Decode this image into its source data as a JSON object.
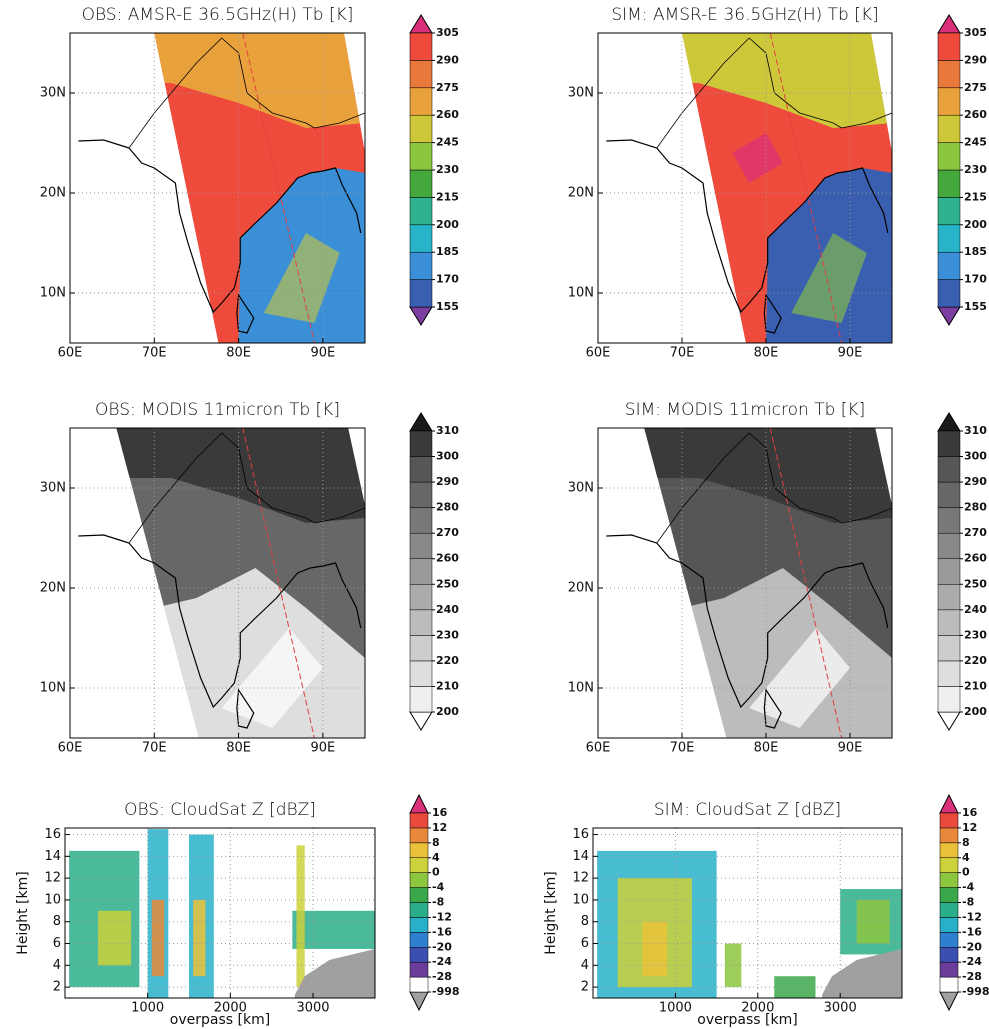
{
  "chart_data": [
    {
      "type": "map",
      "title": "OBS: AMSR-E 36.5GHz(H) Tb [K]",
      "xlim": [
        60,
        95
      ],
      "ylim": [
        5,
        36
      ],
      "xticks": [
        {
          "value": 60,
          "label": "60E"
        },
        {
          "value": 70,
          "label": "70E"
        },
        {
          "value": 80,
          "label": "80E"
        },
        {
          "value": 90,
          "label": "90E"
        }
      ],
      "yticks": [
        {
          "value": 10,
          "label": "10N"
        },
        {
          "value": 20,
          "label": "20N"
        },
        {
          "value": 30,
          "label": "30N"
        }
      ],
      "grid": true,
      "colorbar": {
        "ticks": [
          155,
          170,
          185,
          200,
          215,
          230,
          245,
          260,
          275,
          290,
          305
        ],
        "colors": [
          "#7b3fa0",
          "#3a5fb0",
          "#3b8fd6",
          "#28b4c8",
          "#2fb38f",
          "#44a83c",
          "#8cc63f",
          "#cdc83a",
          "#e9a23b",
          "#e8783b",
          "#ee4b3c",
          "#d8307a"
        ]
      }
    },
    {
      "type": "map",
      "title": "SIM: AMSR-E 36.5GHz(H) Tb [K]",
      "xlim": [
        60,
        95
      ],
      "ylim": [
        5,
        36
      ],
      "xticks": [
        {
          "value": 60,
          "label": "60E"
        },
        {
          "value": 70,
          "label": "70E"
        },
        {
          "value": 80,
          "label": "80E"
        },
        {
          "value": 90,
          "label": "90E"
        }
      ],
      "yticks": [
        {
          "value": 10,
          "label": "10N"
        },
        {
          "value": 20,
          "label": "20N"
        },
        {
          "value": 30,
          "label": "30N"
        }
      ],
      "grid": true,
      "colorbar": {
        "ticks": [
          155,
          170,
          185,
          200,
          215,
          230,
          245,
          260,
          275,
          290,
          305
        ],
        "colors": [
          "#7b3fa0",
          "#3a5fb0",
          "#3b8fd6",
          "#28b4c8",
          "#2fb38f",
          "#44a83c",
          "#8cc63f",
          "#cdc83a",
          "#e9a23b",
          "#e8783b",
          "#ee4b3c",
          "#d8307a"
        ]
      }
    },
    {
      "type": "map",
      "title": "OBS: MODIS 11micron Tb [K]",
      "xlim": [
        60,
        95
      ],
      "ylim": [
        5,
        36
      ],
      "xticks": [
        {
          "value": 60,
          "label": "60E"
        },
        {
          "value": 70,
          "label": "70E"
        },
        {
          "value": 80,
          "label": "80E"
        },
        {
          "value": 90,
          "label": "90E"
        }
      ],
      "yticks": [
        {
          "value": 10,
          "label": "10N"
        },
        {
          "value": 20,
          "label": "20N"
        },
        {
          "value": 30,
          "label": "30N"
        }
      ],
      "grid": true,
      "colorbar": {
        "ticks": [
          200,
          210,
          220,
          230,
          240,
          250,
          260,
          270,
          280,
          290,
          300,
          310
        ],
        "colors": [
          "#ffffff",
          "#efefef",
          "#dedede",
          "#cdcdcd",
          "#bcbcbc",
          "#ababab",
          "#9a9a9a",
          "#898989",
          "#787878",
          "#676767",
          "#565656",
          "#3a3a3a",
          "#1a1a1a"
        ]
      }
    },
    {
      "type": "map",
      "title": "SIM: MODIS 11micron Tb [K]",
      "xlim": [
        60,
        95
      ],
      "ylim": [
        5,
        36
      ],
      "xticks": [
        {
          "value": 60,
          "label": "60E"
        },
        {
          "value": 70,
          "label": "70E"
        },
        {
          "value": 80,
          "label": "80E"
        },
        {
          "value": 90,
          "label": "90E"
        }
      ],
      "yticks": [
        {
          "value": 10,
          "label": "10N"
        },
        {
          "value": 20,
          "label": "20N"
        },
        {
          "value": 30,
          "label": "30N"
        }
      ],
      "grid": true,
      "colorbar": {
        "ticks": [
          200,
          210,
          220,
          230,
          240,
          250,
          260,
          270,
          280,
          290,
          300,
          310
        ],
        "colors": [
          "#ffffff",
          "#efefef",
          "#dedede",
          "#cdcdcd",
          "#bcbcbc",
          "#ababab",
          "#9a9a9a",
          "#898989",
          "#787878",
          "#676767",
          "#565656",
          "#3a3a3a",
          "#1a1a1a"
        ]
      }
    },
    {
      "type": "curtain",
      "title": "OBS: CloudSat Z [dBZ]",
      "xlabel": "overpass [km]",
      "ylabel": "Height [km]",
      "xlim": [
        0,
        3750
      ],
      "ylim": [
        1,
        16.6
      ],
      "xticks": [
        1000,
        2000,
        3000
      ],
      "yticks": [
        2,
        4,
        6,
        8,
        10,
        12,
        14,
        16
      ],
      "grid": true,
      "colorbar": {
        "ticks": [
          -998,
          -28,
          -24,
          -20,
          -16,
          -12,
          -8,
          -4,
          0,
          4,
          8,
          12,
          16
        ],
        "colors": [
          "#a0a0a0",
          "#ffffff",
          "#6a3d9a",
          "#3a4fb0",
          "#2f7fd0",
          "#28b0c8",
          "#2aae8a",
          "#3aa84a",
          "#8cc63f",
          "#cdd13a",
          "#eac23a",
          "#e9883a",
          "#e84a3c",
          "#d8307a"
        ]
      }
    },
    {
      "type": "curtain",
      "title": "SIM: CloudSat Z [dBZ]",
      "xlabel": "overpass [km]",
      "ylabel": "Height [km]",
      "xlim": [
        0,
        3750
      ],
      "ylim": [
        1,
        16.6
      ],
      "xticks": [
        1000,
        2000,
        3000
      ],
      "yticks": [
        2,
        4,
        6,
        8,
        10,
        12,
        14,
        16
      ],
      "grid": true,
      "colorbar": {
        "ticks": [
          -998,
          -28,
          -24,
          -20,
          -16,
          -12,
          -8,
          -4,
          0,
          4,
          8,
          12,
          16
        ],
        "colors": [
          "#a0a0a0",
          "#ffffff",
          "#6a3d9a",
          "#3a4fb0",
          "#2f7fd0",
          "#28b0c8",
          "#2aae8a",
          "#3aa84a",
          "#8cc63f",
          "#cdd13a",
          "#eac23a",
          "#e9883a",
          "#e84a3c",
          "#d8307a"
        ]
      }
    }
  ]
}
